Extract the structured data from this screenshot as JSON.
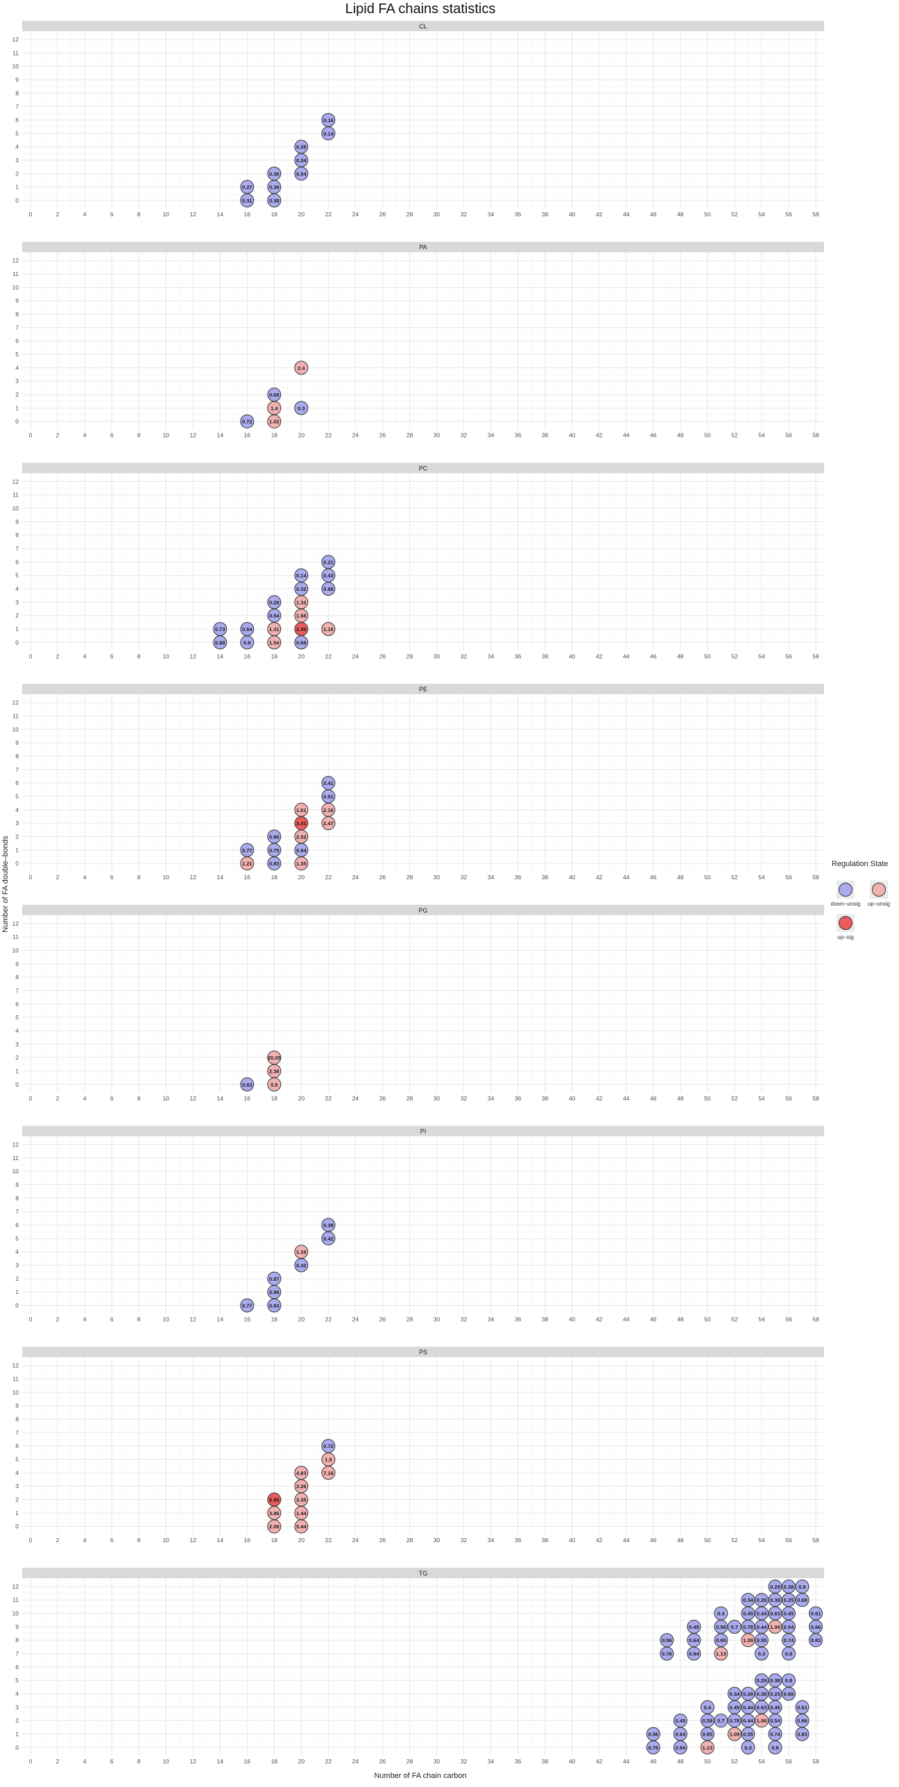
{
  "title": "Lipid FA chains statistics",
  "chart_data": {
    "type": "scatter",
    "title": "Lipid FA chains statistics",
    "xlabel": "Number of FA chain carbon",
    "ylabel": "Number of FA double–bonds",
    "xlim": [
      0,
      58
    ],
    "ylim": [
      0,
      12
    ],
    "x_ticks": [
      "0",
      "2",
      "4",
      "6",
      "8",
      "10",
      "12",
      "14",
      "16",
      "18",
      "20",
      "22",
      "24",
      "26",
      "28",
      "30",
      "32",
      "34",
      "36",
      "38",
      "40",
      "42",
      "44",
      "46",
      "48",
      "50",
      "52",
      "54",
      "56",
      "58"
    ],
    "y_ticks": [
      "0",
      "1",
      "2",
      "3",
      "4",
      "5",
      "6",
      "7",
      "8",
      "9",
      "10",
      "11",
      "12"
    ],
    "grid": true,
    "legend_position": "right",
    "legend": {
      "title": "Regulation State",
      "entries": [
        {
          "key": "down",
          "label": "down–unsig",
          "color": "#aaaaee"
        },
        {
          "key": "upu",
          "label": "up–unsig",
          "color": "#f2b1b1"
        },
        {
          "key": "ups",
          "label": "up–sig",
          "color": "#ec5b5b"
        }
      ]
    },
    "panels": [
      {
        "name": "CL",
        "points": [
          {
            "x": 16,
            "y": 0,
            "label": "0.31",
            "state": "down"
          },
          {
            "x": 16,
            "y": 1,
            "label": "0.27",
            "state": "down"
          },
          {
            "x": 18,
            "y": 0,
            "label": "0.38",
            "state": "down"
          },
          {
            "x": 18,
            "y": 1,
            "label": "0.39",
            "state": "down"
          },
          {
            "x": 18,
            "y": 2,
            "label": "0.36",
            "state": "down"
          },
          {
            "x": 20,
            "y": 2,
            "label": "0.54",
            "state": "down"
          },
          {
            "x": 20,
            "y": 3,
            "label": "0.34",
            "state": "down"
          },
          {
            "x": 20,
            "y": 4,
            "label": "0.35",
            "state": "down"
          },
          {
            "x": 22,
            "y": 5,
            "label": "0.14",
            "state": "down"
          },
          {
            "x": 22,
            "y": 6,
            "label": "0.16",
            "state": "down"
          }
        ]
      },
      {
        "name": "PA",
        "points": [
          {
            "x": 16,
            "y": 0,
            "label": "0.72",
            "state": "down"
          },
          {
            "x": 18,
            "y": 0,
            "label": "1.02",
            "state": "upu"
          },
          {
            "x": 18,
            "y": 1,
            "label": "1.4",
            "state": "upu"
          },
          {
            "x": 18,
            "y": 2,
            "label": "0.69",
            "state": "down"
          },
          {
            "x": 20,
            "y": 1,
            "label": "0.3",
            "state": "down"
          },
          {
            "x": 20,
            "y": 4,
            "label": "2.4",
            "state": "upu"
          }
        ]
      },
      {
        "name": "PC",
        "points": [
          {
            "x": 14,
            "y": 0,
            "label": "0.88",
            "state": "down"
          },
          {
            "x": 14,
            "y": 1,
            "label": "0.73",
            "state": "down"
          },
          {
            "x": 16,
            "y": 0,
            "label": "0.8",
            "state": "down"
          },
          {
            "x": 16,
            "y": 1,
            "label": "0.64",
            "state": "down"
          },
          {
            "x": 18,
            "y": 0,
            "label": "1.54",
            "state": "upu"
          },
          {
            "x": 18,
            "y": 1,
            "label": "1.31",
            "state": "upu"
          },
          {
            "x": 18,
            "y": 2,
            "label": "0.54",
            "state": "down"
          },
          {
            "x": 18,
            "y": 3,
            "label": "0.28",
            "state": "down"
          },
          {
            "x": 20,
            "y": 0,
            "label": "0.68",
            "state": "down"
          },
          {
            "x": 20,
            "y": 1,
            "label": "2.46",
            "state": "ups"
          },
          {
            "x": 20,
            "y": 2,
            "label": "1.68",
            "state": "upu"
          },
          {
            "x": 20,
            "y": 3,
            "label": "1.32",
            "state": "upu"
          },
          {
            "x": 20,
            "y": 4,
            "label": "0.32",
            "state": "down"
          },
          {
            "x": 20,
            "y": 5,
            "label": "0.14",
            "state": "down"
          },
          {
            "x": 22,
            "y": 1,
            "label": "1.16",
            "state": "upu"
          },
          {
            "x": 22,
            "y": 4,
            "label": "0.68",
            "state": "down"
          },
          {
            "x": 22,
            "y": 5,
            "label": "0.43",
            "state": "down"
          },
          {
            "x": 22,
            "y": 6,
            "label": "0.21",
            "state": "down"
          }
        ]
      },
      {
        "name": "PE",
        "points": [
          {
            "x": 16,
            "y": 0,
            "label": "1.21",
            "state": "upu"
          },
          {
            "x": 16,
            "y": 1,
            "label": "0.77",
            "state": "down"
          },
          {
            "x": 18,
            "y": 0,
            "label": "0.83",
            "state": "down"
          },
          {
            "x": 18,
            "y": 1,
            "label": "0.75",
            "state": "down"
          },
          {
            "x": 18,
            "y": 2,
            "label": "0.86",
            "state": "down"
          },
          {
            "x": 20,
            "y": 0,
            "label": "1.35",
            "state": "upu"
          },
          {
            "x": 20,
            "y": 1,
            "label": "0.94",
            "state": "down"
          },
          {
            "x": 20,
            "y": 2,
            "label": "2.02",
            "state": "upu"
          },
          {
            "x": 20,
            "y": 3,
            "label": "3.41",
            "state": "ups"
          },
          {
            "x": 20,
            "y": 4,
            "label": "1.61",
            "state": "upu"
          },
          {
            "x": 22,
            "y": 3,
            "label": "2.47",
            "state": "upu"
          },
          {
            "x": 22,
            "y": 4,
            "label": "2.16",
            "state": "upu"
          },
          {
            "x": 22,
            "y": 5,
            "label": "0.51",
            "state": "down"
          },
          {
            "x": 22,
            "y": 6,
            "label": "0.41",
            "state": "down"
          }
        ]
      },
      {
        "name": "PG",
        "points": [
          {
            "x": 16,
            "y": 0,
            "label": "0.83",
            "state": "down"
          },
          {
            "x": 18,
            "y": 0,
            "label": "5.5",
            "state": "upu"
          },
          {
            "x": 18,
            "y": 1,
            "label": "2.36",
            "state": "upu"
          },
          {
            "x": 18,
            "y": 2,
            "label": "20.05",
            "state": "upu"
          }
        ]
      },
      {
        "name": "PI",
        "points": [
          {
            "x": 16,
            "y": 0,
            "label": "0.77",
            "state": "down"
          },
          {
            "x": 18,
            "y": 0,
            "label": "0.83",
            "state": "down"
          },
          {
            "x": 18,
            "y": 1,
            "label": "0.96",
            "state": "down"
          },
          {
            "x": 18,
            "y": 2,
            "label": "0.87",
            "state": "down"
          },
          {
            "x": 20,
            "y": 3,
            "label": "0.42",
            "state": "down"
          },
          {
            "x": 20,
            "y": 4,
            "label": "1.16",
            "state": "upu"
          },
          {
            "x": 22,
            "y": 5,
            "label": "0.42",
            "state": "down"
          },
          {
            "x": 22,
            "y": 6,
            "label": "0.38",
            "state": "down"
          }
        ]
      },
      {
        "name": "PS",
        "points": [
          {
            "x": 18,
            "y": 0,
            "label": "2.08",
            "state": "upu"
          },
          {
            "x": 18,
            "y": 1,
            "label": "3.86",
            "state": "upu"
          },
          {
            "x": 18,
            "y": 2,
            "label": "8.96",
            "state": "ups"
          },
          {
            "x": 20,
            "y": 0,
            "label": "5.44",
            "state": "upu"
          },
          {
            "x": 20,
            "y": 1,
            "label": "1.44",
            "state": "upu"
          },
          {
            "x": 20,
            "y": 2,
            "label": "3.35",
            "state": "upu"
          },
          {
            "x": 20,
            "y": 3,
            "label": "3.26",
            "state": "upu"
          },
          {
            "x": 20,
            "y": 4,
            "label": "4.83",
            "state": "upu"
          },
          {
            "x": 22,
            "y": 4,
            "label": "7.16",
            "state": "upu"
          },
          {
            "x": 22,
            "y": 5,
            "label": "1.5",
            "state": "upu"
          },
          {
            "x": 22,
            "y": 6,
            "label": "0.72",
            "state": "down"
          }
        ]
      },
      {
        "name": "TG",
        "points": [
          {
            "x": 46,
            "y": 0,
            "label": "0.76",
            "state": "down"
          },
          {
            "x": 46,
            "y": 1,
            "label": "0.56",
            "state": "down"
          },
          {
            "x": 47,
            "y": 7,
            "label": "0.76",
            "state": "down"
          },
          {
            "x": 47,
            "y": 8,
            "label": "0.56",
            "state": "down"
          },
          {
            "x": 48,
            "y": 0,
            "label": "0.94",
            "state": "down"
          },
          {
            "x": 48,
            "y": 1,
            "label": "0.64",
            "state": "down"
          },
          {
            "x": 48,
            "y": 2,
            "label": "0.45",
            "state": "down"
          },
          {
            "x": 49,
            "y": 7,
            "label": "0.94",
            "state": "down"
          },
          {
            "x": 49,
            "y": 8,
            "label": "0.64",
            "state": "down"
          },
          {
            "x": 49,
            "y": 9,
            "label": "0.45",
            "state": "down"
          },
          {
            "x": 50,
            "y": 0,
            "label": "1.13",
            "state": "upu"
          },
          {
            "x": 50,
            "y": 1,
            "label": "0.65",
            "state": "down"
          },
          {
            "x": 50,
            "y": 2,
            "label": "0.58",
            "state": "down"
          },
          {
            "x": 50,
            "y": 3,
            "label": "0.4",
            "state": "down"
          },
          {
            "x": 51,
            "y": 2,
            "label": "0.7",
            "state": "down"
          },
          {
            "x": 51,
            "y": 7,
            "label": "1.13",
            "state": "upu"
          },
          {
            "x": 51,
            "y": 8,
            "label": "0.65",
            "state": "down"
          },
          {
            "x": 51,
            "y": 9,
            "label": "0.58",
            "state": "down"
          },
          {
            "x": 51,
            "y": 10,
            "label": "0.4",
            "state": "down"
          },
          {
            "x": 52,
            "y": 1,
            "label": "1.09",
            "state": "upu"
          },
          {
            "x": 52,
            "y": 2,
            "label": "0.78",
            "state": "down"
          },
          {
            "x": 52,
            "y": 3,
            "label": "0.45",
            "state": "down"
          },
          {
            "x": 52,
            "y": 4,
            "label": "0.34",
            "state": "down"
          },
          {
            "x": 52,
            "y": 9,
            "label": "0.7",
            "state": "down"
          },
          {
            "x": 53,
            "y": 0,
            "label": "0.3",
            "state": "down"
          },
          {
            "x": 53,
            "y": 1,
            "label": "0.55",
            "state": "down"
          },
          {
            "x": 53,
            "y": 2,
            "label": "0.44",
            "state": "down"
          },
          {
            "x": 53,
            "y": 3,
            "label": "0.44",
            "state": "down"
          },
          {
            "x": 53,
            "y": 4,
            "label": "0.28",
            "state": "down"
          },
          {
            "x": 53,
            "y": 8,
            "label": "1.09",
            "state": "upu"
          },
          {
            "x": 53,
            "y": 9,
            "label": "0.78",
            "state": "down"
          },
          {
            "x": 53,
            "y": 10,
            "label": "0.45",
            "state": "down"
          },
          {
            "x": 53,
            "y": 11,
            "label": "0.34",
            "state": "down"
          },
          {
            "x": 54,
            "y": 2,
            "label": "1.06",
            "state": "upu"
          },
          {
            "x": 54,
            "y": 3,
            "label": "0.63",
            "state": "down"
          },
          {
            "x": 54,
            "y": 4,
            "label": "0.38",
            "state": "down"
          },
          {
            "x": 54,
            "y": 5,
            "label": "0.29",
            "state": "down"
          },
          {
            "x": 54,
            "y": 7,
            "label": "0.3",
            "state": "down"
          },
          {
            "x": 54,
            "y": 8,
            "label": "0.55",
            "state": "down"
          },
          {
            "x": 54,
            "y": 9,
            "label": "0.44",
            "state": "down"
          },
          {
            "x": 54,
            "y": 10,
            "label": "0.44",
            "state": "down"
          },
          {
            "x": 54,
            "y": 11,
            "label": "0.28",
            "state": "down"
          },
          {
            "x": 55,
            "y": 0,
            "label": "0.8",
            "state": "down"
          },
          {
            "x": 55,
            "y": 1,
            "label": "0.74",
            "state": "down"
          },
          {
            "x": 55,
            "y": 2,
            "label": "0.54",
            "state": "down"
          },
          {
            "x": 55,
            "y": 3,
            "label": "0.45",
            "state": "down"
          },
          {
            "x": 55,
            "y": 4,
            "label": "0.25",
            "state": "down"
          },
          {
            "x": 55,
            "y": 5,
            "label": "0.38",
            "state": "down"
          },
          {
            "x": 55,
            "y": 9,
            "label": "1.06",
            "state": "upu"
          },
          {
            "x": 55,
            "y": 10,
            "label": "0.63",
            "state": "down"
          },
          {
            "x": 55,
            "y": 11,
            "label": "0.38",
            "state": "down"
          },
          {
            "x": 55,
            "y": 12,
            "label": "0.29",
            "state": "down"
          },
          {
            "x": 56,
            "y": 4,
            "label": "0.68",
            "state": "down"
          },
          {
            "x": 56,
            "y": 5,
            "label": "0.8",
            "state": "down"
          },
          {
            "x": 56,
            "y": 7,
            "label": "0.8",
            "state": "down"
          },
          {
            "x": 56,
            "y": 8,
            "label": "0.74",
            "state": "down"
          },
          {
            "x": 56,
            "y": 9,
            "label": "0.54",
            "state": "down"
          },
          {
            "x": 56,
            "y": 10,
            "label": "0.45",
            "state": "down"
          },
          {
            "x": 56,
            "y": 11,
            "label": "0.25",
            "state": "down"
          },
          {
            "x": 56,
            "y": 12,
            "label": "0.38",
            "state": "down"
          },
          {
            "x": 57,
            "y": 1,
            "label": "0.83",
            "state": "down"
          },
          {
            "x": 57,
            "y": 2,
            "label": "0.66",
            "state": "down"
          },
          {
            "x": 57,
            "y": 3,
            "label": "0.61",
            "state": "down"
          },
          {
            "x": 57,
            "y": 11,
            "label": "0.68",
            "state": "down"
          },
          {
            "x": 57,
            "y": 12,
            "label": "0.8",
            "state": "down"
          },
          {
            "x": 58,
            "y": 8,
            "label": "0.83",
            "state": "down"
          },
          {
            "x": 58,
            "y": 9,
            "label": "0.66",
            "state": "down"
          },
          {
            "x": 58,
            "y": 10,
            "label": "0.61",
            "state": "down"
          }
        ]
      }
    ]
  }
}
